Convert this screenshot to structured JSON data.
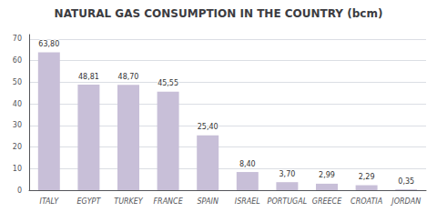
{
  "chart_data": {
    "type": "bar",
    "title": "NATURAL GAS CONSUMPTION IN THE COUNTRY (bcm)",
    "categories": [
      "ITALY",
      "EGYPT",
      "TURKEY",
      "FRANCE",
      "SPAIN",
      "ISRAEL",
      "PORTUGAL",
      "GREECE",
      "CROATIA",
      "JORDAN"
    ],
    "values": [
      63.8,
      48.81,
      48.7,
      45.55,
      25.4,
      8.4,
      3.7,
      2.99,
      2.29,
      0.35
    ],
    "value_labels": [
      "63,80",
      "48,81",
      "48,70",
      "45,55",
      "25,40",
      "8,40",
      "3,70",
      "2,99",
      "2,29",
      "0,35"
    ],
    "data_labels": true,
    "color": "#c8bfd8",
    "ylim": [
      0,
      72
    ],
    "yticks": [
      0,
      10,
      20,
      30,
      40,
      50,
      60,
      70
    ],
    "grid": true
  }
}
